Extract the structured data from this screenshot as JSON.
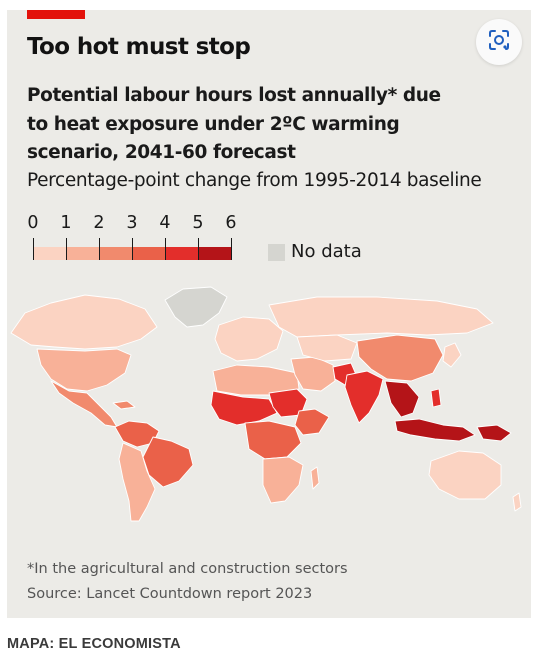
{
  "chart": {
    "headline": "Too hot must stop",
    "subtitle": "Potential labour hours lost annually* due to heat exposure under 2ºC warming scenario, 2041-60 forecast",
    "unit": "Percentage-point change from 1995-2014 baseline",
    "footnote": "*In the agricultural and construction sectors",
    "source": "Source: Lancet Countdown report 2023"
  },
  "legend": {
    "ticks": [
      "0",
      "1",
      "2",
      "3",
      "4",
      "5",
      "6"
    ],
    "colors": [
      "#fbd3c2",
      "#f8b198",
      "#f18a6d",
      "#ea6149",
      "#e32e2b",
      "#b41418"
    ],
    "no_data_label": "No data",
    "no_data_color": "#d5d5d0"
  },
  "icons": {
    "lens": "google-lens-icon"
  },
  "credit": "MAPA: EL ECONOMISTA",
  "colors": {
    "accent": "#e3120b",
    "background": "#ecebe7"
  }
}
